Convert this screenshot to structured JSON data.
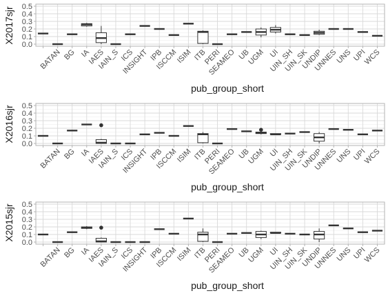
{
  "chart_data": [
    {
      "type": "boxplot",
      "xlabel": "pub_group_short",
      "ylabel": "X2017sjr",
      "ylim": [
        0,
        0.5
      ],
      "yticks": [
        "0.0",
        "0.1",
        "0.2",
        "0.3",
        "0.4",
        "0.5"
      ],
      "grid": true,
      "categories": [
        "",
        "BATAN",
        "BG",
        "IA",
        "IAES",
        "IAIN_S",
        "ICS",
        "INSIGHT",
        "IPB",
        "ISCCM",
        "ISIM",
        "ITB",
        "PERI",
        "SEAMEO",
        "UB",
        "UGM",
        "UI",
        "UIN_SH",
        "UIN_SK",
        "UNDIP",
        "UNNES",
        "UNS",
        "UPI",
        "WCS"
      ],
      "boxes": [
        {
          "category": "",
          "min": 0.14,
          "q1": 0.14,
          "median": 0.14,
          "q3": 0.14,
          "max": 0.14,
          "outliers": []
        },
        {
          "category": "BATAN",
          "min": 0.0,
          "q1": 0.0,
          "median": 0.0,
          "q3": 0.0,
          "max": 0.0,
          "outliers": []
        },
        {
          "category": "BG",
          "min": 0.13,
          "q1": 0.13,
          "median": 0.13,
          "q3": 0.13,
          "max": 0.13,
          "outliers": []
        },
        {
          "category": "IA",
          "min": 0.23,
          "q1": 0.24,
          "median": 0.26,
          "q3": 0.27,
          "max": 0.28,
          "outliers": []
        },
        {
          "category": "IAES",
          "min": 0.0,
          "q1": 0.02,
          "median": 0.08,
          "q3": 0.15,
          "max": 0.24,
          "outliers": []
        },
        {
          "category": "IAIN_S",
          "min": 0.0,
          "q1": 0.0,
          "median": 0.0,
          "q3": 0.0,
          "max": 0.0,
          "outliers": []
        },
        {
          "category": "ICS",
          "min": 0.13,
          "q1": 0.13,
          "median": 0.13,
          "q3": 0.13,
          "max": 0.13,
          "outliers": []
        },
        {
          "category": "INSIGHT",
          "min": 0.24,
          "q1": 0.24,
          "median": 0.24,
          "q3": 0.24,
          "max": 0.24,
          "outliers": []
        },
        {
          "category": "IPB",
          "min": 0.2,
          "q1": 0.2,
          "median": 0.2,
          "q3": 0.2,
          "max": 0.2,
          "outliers": []
        },
        {
          "category": "ISCCM",
          "min": 0.12,
          "q1": 0.12,
          "median": 0.12,
          "q3": 0.12,
          "max": 0.12,
          "outliers": []
        },
        {
          "category": "ISIM",
          "min": 0.27,
          "q1": 0.27,
          "median": 0.27,
          "q3": 0.27,
          "max": 0.27,
          "outliers": []
        },
        {
          "category": "ITB",
          "min": 0.0,
          "q1": 0.01,
          "median": 0.16,
          "q3": 0.17,
          "max": 0.18,
          "outliers": []
        },
        {
          "category": "PERI",
          "min": 0.0,
          "q1": 0.0,
          "median": 0.0,
          "q3": 0.0,
          "max": 0.0,
          "outliers": []
        },
        {
          "category": "SEAMEO",
          "min": 0.13,
          "q1": 0.13,
          "median": 0.13,
          "q3": 0.13,
          "max": 0.13,
          "outliers": []
        },
        {
          "category": "UB",
          "min": 0.16,
          "q1": 0.16,
          "median": 0.16,
          "q3": 0.16,
          "max": 0.16,
          "outliers": []
        },
        {
          "category": "UGM",
          "min": 0.09,
          "q1": 0.12,
          "median": 0.16,
          "q3": 0.2,
          "max": 0.22,
          "outliers": []
        },
        {
          "category": "UI",
          "min": 0.14,
          "q1": 0.16,
          "median": 0.19,
          "q3": 0.22,
          "max": 0.25,
          "outliers": []
        },
        {
          "category": "UIN_SH",
          "min": 0.13,
          "q1": 0.13,
          "median": 0.13,
          "q3": 0.13,
          "max": 0.13,
          "outliers": []
        },
        {
          "category": "UIN_SK",
          "min": 0.12,
          "q1": 0.12,
          "median": 0.12,
          "q3": 0.12,
          "max": 0.12,
          "outliers": []
        },
        {
          "category": "UNDIP",
          "min": 0.12,
          "q1": 0.13,
          "median": 0.15,
          "q3": 0.17,
          "max": 0.19,
          "outliers": []
        },
        {
          "category": "UNNES",
          "min": 0.2,
          "q1": 0.2,
          "median": 0.2,
          "q3": 0.2,
          "max": 0.2,
          "outliers": []
        },
        {
          "category": "UNS",
          "min": 0.2,
          "q1": 0.2,
          "median": 0.2,
          "q3": 0.2,
          "max": 0.2,
          "outliers": []
        },
        {
          "category": "UPI",
          "min": 0.16,
          "q1": 0.16,
          "median": 0.16,
          "q3": 0.16,
          "max": 0.16,
          "outliers": []
        },
        {
          "category": "WCS",
          "min": 0.11,
          "q1": 0.11,
          "median": 0.11,
          "q3": 0.11,
          "max": 0.11,
          "outliers": []
        }
      ]
    },
    {
      "type": "boxplot",
      "xlabel": "pub_group_short",
      "ylabel": "X2016sjr",
      "ylim": [
        0,
        0.5
      ],
      "yticks": [
        "0.0",
        "0.1",
        "0.2",
        "0.3",
        "0.4",
        "0.5"
      ],
      "grid": true,
      "categories": [
        "",
        "BATAN",
        "BG",
        "IA",
        "IAES",
        "IAIN_S",
        "ICS",
        "INSIGHT",
        "IPB",
        "ISCCM",
        "ISIM",
        "ITB",
        "PERI",
        "SEAMEO",
        "UB",
        "UGM",
        "UI",
        "UIN_SH",
        "UIN_SK",
        "UNDIP",
        "UNNES",
        "UNS",
        "UPI",
        "WCS"
      ],
      "boxes": [
        {
          "category": "",
          "min": 0.1,
          "q1": 0.1,
          "median": 0.1,
          "q3": 0.1,
          "max": 0.1,
          "outliers": []
        },
        {
          "category": "BATAN",
          "min": 0.0,
          "q1": 0.0,
          "median": 0.0,
          "q3": 0.0,
          "max": 0.0,
          "outliers": []
        },
        {
          "category": "BG",
          "min": 0.17,
          "q1": 0.17,
          "median": 0.17,
          "q3": 0.17,
          "max": 0.17,
          "outliers": []
        },
        {
          "category": "IA",
          "min": 0.25,
          "q1": 0.25,
          "median": 0.25,
          "q3": 0.25,
          "max": 0.25,
          "outliers": []
        },
        {
          "category": "IAES",
          "min": 0.0,
          "q1": 0.0,
          "median": 0.01,
          "q3": 0.05,
          "max": 0.06,
          "outliers": [
            0.24
          ]
        },
        {
          "category": "IAIN_S",
          "min": 0.0,
          "q1": 0.0,
          "median": 0.0,
          "q3": 0.0,
          "max": 0.0,
          "outliers": []
        },
        {
          "category": "ICS",
          "min": 0.0,
          "q1": 0.0,
          "median": 0.0,
          "q3": 0.0,
          "max": 0.0,
          "outliers": []
        },
        {
          "category": "INSIGHT",
          "min": 0.12,
          "q1": 0.12,
          "median": 0.12,
          "q3": 0.12,
          "max": 0.12,
          "outliers": []
        },
        {
          "category": "IPB",
          "min": 0.14,
          "q1": 0.14,
          "median": 0.14,
          "q3": 0.14,
          "max": 0.14,
          "outliers": []
        },
        {
          "category": "ISCCM",
          "min": 0.1,
          "q1": 0.1,
          "median": 0.1,
          "q3": 0.1,
          "max": 0.1,
          "outliers": []
        },
        {
          "category": "ISIM",
          "min": 0.23,
          "q1": 0.23,
          "median": 0.23,
          "q3": 0.23,
          "max": 0.23,
          "outliers": []
        },
        {
          "category": "ITB",
          "min": 0.0,
          "q1": 0.01,
          "median": 0.12,
          "q3": 0.13,
          "max": 0.15,
          "outliers": []
        },
        {
          "category": "PERI",
          "min": 0.0,
          "q1": 0.0,
          "median": 0.0,
          "q3": 0.0,
          "max": 0.0,
          "outliers": []
        },
        {
          "category": "SEAMEO",
          "min": 0.19,
          "q1": 0.19,
          "median": 0.19,
          "q3": 0.19,
          "max": 0.19,
          "outliers": []
        },
        {
          "category": "UB",
          "min": 0.16,
          "q1": 0.16,
          "median": 0.16,
          "q3": 0.16,
          "max": 0.16,
          "outliers": []
        },
        {
          "category": "UGM",
          "min": 0.12,
          "q1": 0.13,
          "median": 0.14,
          "q3": 0.15,
          "max": 0.16,
          "outliers": [
            0.18
          ]
        },
        {
          "category": "UI",
          "min": 0.12,
          "q1": 0.12,
          "median": 0.12,
          "q3": 0.13,
          "max": 0.13,
          "outliers": []
        },
        {
          "category": "UIN_SH",
          "min": 0.13,
          "q1": 0.13,
          "median": 0.13,
          "q3": 0.13,
          "max": 0.13,
          "outliers": []
        },
        {
          "category": "UIN_SK",
          "min": 0.15,
          "q1": 0.15,
          "median": 0.15,
          "q3": 0.15,
          "max": 0.15,
          "outliers": []
        },
        {
          "category": "UNDIP",
          "min": 0.0,
          "q1": 0.03,
          "median": 0.08,
          "q3": 0.13,
          "max": 0.15,
          "outliers": []
        },
        {
          "category": "UNNES",
          "min": 0.19,
          "q1": 0.19,
          "median": 0.19,
          "q3": 0.19,
          "max": 0.19,
          "outliers": []
        },
        {
          "category": "UNS",
          "min": 0.18,
          "q1": 0.18,
          "median": 0.18,
          "q3": 0.18,
          "max": 0.18,
          "outliers": []
        },
        {
          "category": "UPI",
          "min": 0.12,
          "q1": 0.12,
          "median": 0.12,
          "q3": 0.12,
          "max": 0.12,
          "outliers": []
        },
        {
          "category": "WCS",
          "min": 0.17,
          "q1": 0.17,
          "median": 0.17,
          "q3": 0.17,
          "max": 0.17,
          "outliers": []
        }
      ]
    },
    {
      "type": "boxplot",
      "xlabel": "pub_group_short",
      "ylabel": "X2015sjr",
      "ylim": [
        0,
        0.5
      ],
      "yticks": [
        "0.0",
        "0.1",
        "0.2",
        "0.3",
        "0.4",
        "0.5"
      ],
      "grid": true,
      "categories": [
        "",
        "BATAN",
        "BG",
        "IA",
        "IAES",
        "IAIN_S",
        "ICS",
        "INSIGHT",
        "IPB",
        "ISCCM",
        "ISIM",
        "ITB",
        "PERI",
        "SEAMEO",
        "UB",
        "UGM",
        "UI",
        "UIN_SH",
        "UIN_SK",
        "UNDIP",
        "UNNES",
        "UNS",
        "UPI",
        "WCS"
      ],
      "boxes": [
        {
          "category": "",
          "min": 0.1,
          "q1": 0.1,
          "median": 0.1,
          "q3": 0.1,
          "max": 0.1,
          "outliers": []
        },
        {
          "category": "BATAN",
          "min": 0.0,
          "q1": 0.0,
          "median": 0.0,
          "q3": 0.0,
          "max": 0.0,
          "outliers": []
        },
        {
          "category": "BG",
          "min": 0.13,
          "q1": 0.13,
          "median": 0.13,
          "q3": 0.13,
          "max": 0.13,
          "outliers": []
        },
        {
          "category": "IA",
          "min": 0.17,
          "q1": 0.18,
          "median": 0.19,
          "q3": 0.2,
          "max": 0.21,
          "outliers": []
        },
        {
          "category": "IAES",
          "min": 0.0,
          "q1": 0.0,
          "median": 0.01,
          "q3": 0.05,
          "max": 0.06,
          "outliers": [
            0.19
          ]
        },
        {
          "category": "IAIN_S",
          "min": 0.0,
          "q1": 0.0,
          "median": 0.0,
          "q3": 0.0,
          "max": 0.0,
          "outliers": []
        },
        {
          "category": "ICS",
          "min": 0.0,
          "q1": 0.0,
          "median": 0.0,
          "q3": 0.0,
          "max": 0.0,
          "outliers": []
        },
        {
          "category": "INSIGHT",
          "min": 0.0,
          "q1": 0.0,
          "median": 0.0,
          "q3": 0.0,
          "max": 0.0,
          "outliers": []
        },
        {
          "category": "IPB",
          "min": 0.17,
          "q1": 0.17,
          "median": 0.17,
          "q3": 0.17,
          "max": 0.17,
          "outliers": []
        },
        {
          "category": "ISCCM",
          "min": 0.11,
          "q1": 0.11,
          "median": 0.11,
          "q3": 0.11,
          "max": 0.11,
          "outliers": []
        },
        {
          "category": "ISIM",
          "min": 0.31,
          "q1": 0.31,
          "median": 0.31,
          "q3": 0.31,
          "max": 0.31,
          "outliers": []
        },
        {
          "category": "ITB",
          "min": 0.0,
          "q1": 0.01,
          "median": 0.1,
          "q3": 0.13,
          "max": 0.18,
          "outliers": []
        },
        {
          "category": "PERI",
          "min": 0.0,
          "q1": 0.0,
          "median": 0.0,
          "q3": 0.0,
          "max": 0.0,
          "outliers": []
        },
        {
          "category": "SEAMEO",
          "min": 0.11,
          "q1": 0.11,
          "median": 0.11,
          "q3": 0.11,
          "max": 0.11,
          "outliers": []
        },
        {
          "category": "UB",
          "min": 0.12,
          "q1": 0.12,
          "median": 0.12,
          "q3": 0.12,
          "max": 0.12,
          "outliers": []
        },
        {
          "category": "UGM",
          "min": 0.04,
          "q1": 0.06,
          "median": 0.1,
          "q3": 0.14,
          "max": 0.15,
          "outliers": []
        },
        {
          "category": "UI",
          "min": 0.12,
          "q1": 0.12,
          "median": 0.12,
          "q3": 0.13,
          "max": 0.13,
          "outliers": []
        },
        {
          "category": "UIN_SH",
          "min": 0.11,
          "q1": 0.11,
          "median": 0.11,
          "q3": 0.11,
          "max": 0.11,
          "outliers": []
        },
        {
          "category": "UIN_SK",
          "min": 0.1,
          "q1": 0.1,
          "median": 0.1,
          "q3": 0.1,
          "max": 0.1,
          "outliers": []
        },
        {
          "category": "UNDIP",
          "min": 0.0,
          "q1": 0.04,
          "median": 0.1,
          "q3": 0.14,
          "max": 0.18,
          "outliers": []
        },
        {
          "category": "UNNES",
          "min": 0.22,
          "q1": 0.22,
          "median": 0.22,
          "q3": 0.22,
          "max": 0.22,
          "outliers": []
        },
        {
          "category": "UNS",
          "min": 0.18,
          "q1": 0.18,
          "median": 0.18,
          "q3": 0.18,
          "max": 0.18,
          "outliers": []
        },
        {
          "category": "UPI",
          "min": 0.13,
          "q1": 0.13,
          "median": 0.13,
          "q3": 0.13,
          "max": 0.13,
          "outliers": []
        },
        {
          "category": "WCS",
          "min": 0.15,
          "q1": 0.15,
          "median": 0.15,
          "q3": 0.15,
          "max": 0.15,
          "outliers": []
        }
      ]
    }
  ],
  "colors": {
    "panel_border": "#b3b3b3",
    "grid_major": "#d9d9d9",
    "grid_minor": "#ececec",
    "box_stroke": "#333333",
    "box_fill": "#ffffff",
    "tick_text": "#4d4d4d",
    "axis_title": "#1a1a1a"
  }
}
